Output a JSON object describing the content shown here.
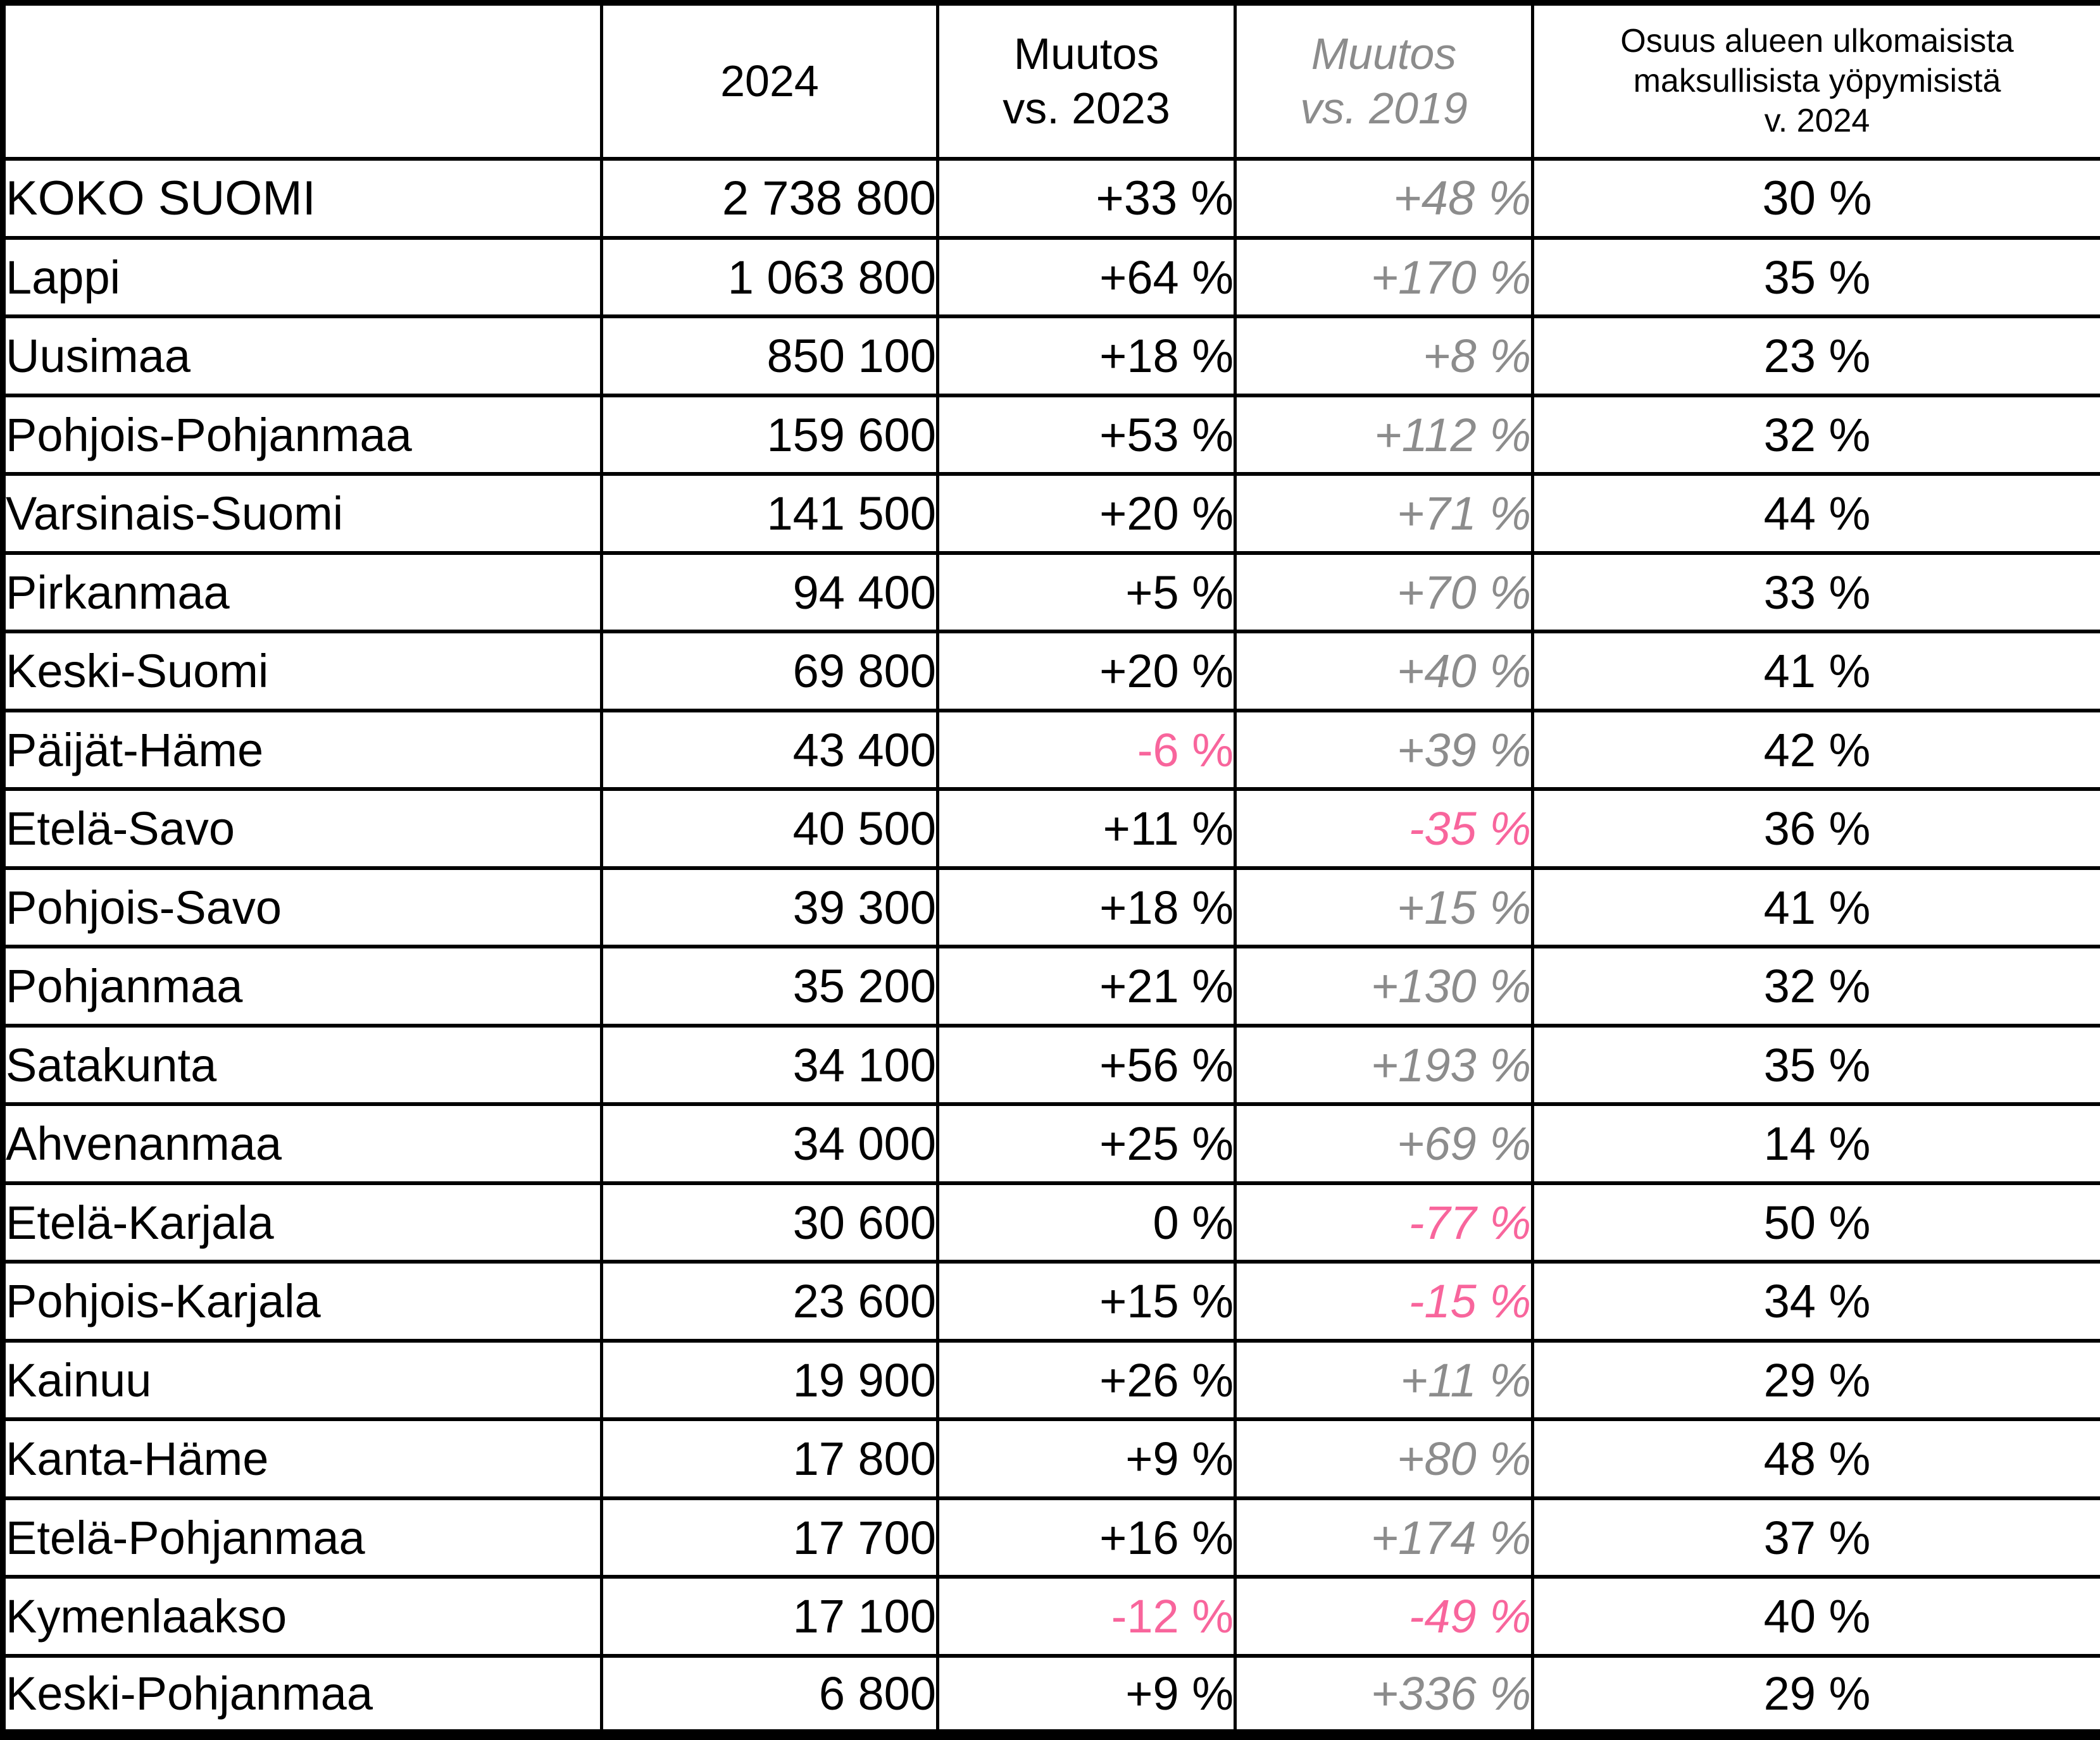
{
  "colors": {
    "text_black": "#000000",
    "muted_gray": "#8c8c8c",
    "negative_pink": "#f8659c",
    "border_black": "#000000",
    "background": "#ffffff"
  },
  "header": {
    "region_label": "",
    "col_2024": "2024",
    "col_vs2023_line1": "Muutos",
    "col_vs2023_line2": "vs. 2023",
    "col_vs2019_line1": "Muutos",
    "col_vs2019_line2": "vs. 2019",
    "col_share_line1": "Osuus alueen ulkomaisista",
    "col_share_line2": "maksullisista yöpymisistä",
    "col_share_line3": "v. 2024"
  },
  "chart_data": {
    "type": "table",
    "columns": [
      "",
      "2024",
      "Muutos vs. 2023",
      "Muutos vs. 2019",
      "Osuus alueen ulkomaisista maksullisista yöpymisistä v. 2024"
    ],
    "rows": [
      {
        "region": "KOKO SUOMI",
        "y2024": "2 738 800",
        "vs2023": "+33 %",
        "vs2023_negative": false,
        "vs2019": "+48 %",
        "vs2019_negative": false,
        "share": "30 %",
        "emphasis": true
      },
      {
        "region": "Lappi",
        "y2024": "1 063 800",
        "vs2023": "+64 %",
        "vs2023_negative": false,
        "vs2019": "+170 %",
        "vs2019_negative": false,
        "share": "35 %",
        "emphasis": false
      },
      {
        "region": "Uusimaa",
        "y2024": "850 100",
        "vs2023": "+18 %",
        "vs2023_negative": false,
        "vs2019": "+8 %",
        "vs2019_negative": false,
        "share": "23 %",
        "emphasis": false
      },
      {
        "region": "Pohjois-Pohjanmaa",
        "y2024": "159 600",
        "vs2023": "+53 %",
        "vs2023_negative": false,
        "vs2019": "+112 %",
        "vs2019_negative": false,
        "share": "32 %",
        "emphasis": false
      },
      {
        "region": "Varsinais-Suomi",
        "y2024": "141 500",
        "vs2023": "+20 %",
        "vs2023_negative": false,
        "vs2019": "+71 %",
        "vs2019_negative": false,
        "share": "44 %",
        "emphasis": false
      },
      {
        "region": "Pirkanmaa",
        "y2024": "94 400",
        "vs2023": "+5 %",
        "vs2023_negative": false,
        "vs2019": "+70 %",
        "vs2019_negative": false,
        "share": "33 %",
        "emphasis": false
      },
      {
        "region": "Keski-Suomi",
        "y2024": "69 800",
        "vs2023": "+20 %",
        "vs2023_negative": false,
        "vs2019": "+40 %",
        "vs2019_negative": false,
        "share": "41 %",
        "emphasis": false
      },
      {
        "region": "Päijät-Häme",
        "y2024": "43 400",
        "vs2023": "-6 %",
        "vs2023_negative": true,
        "vs2019": "+39 %",
        "vs2019_negative": false,
        "share": "42 %",
        "emphasis": false
      },
      {
        "region": "Etelä-Savo",
        "y2024": "40 500",
        "vs2023": "+11 %",
        "vs2023_negative": false,
        "vs2019": "-35 %",
        "vs2019_negative": true,
        "share": "36 %",
        "emphasis": false
      },
      {
        "region": "Pohjois-Savo",
        "y2024": "39 300",
        "vs2023": "+18 %",
        "vs2023_negative": false,
        "vs2019": "+15 %",
        "vs2019_negative": false,
        "share": "41 %",
        "emphasis": false
      },
      {
        "region": "Pohjanmaa",
        "y2024": "35 200",
        "vs2023": "+21 %",
        "vs2023_negative": false,
        "vs2019": "+130 %",
        "vs2019_negative": false,
        "share": "32 %",
        "emphasis": false
      },
      {
        "region": "Satakunta",
        "y2024": "34 100",
        "vs2023": "+56 %",
        "vs2023_negative": false,
        "vs2019": "+193 %",
        "vs2019_negative": false,
        "share": "35 %",
        "emphasis": false
      },
      {
        "region": "Ahvenanmaa",
        "y2024": "34 000",
        "vs2023": "+25 %",
        "vs2023_negative": false,
        "vs2019": "+69 %",
        "vs2019_negative": false,
        "share": "14 %",
        "emphasis": false
      },
      {
        "region": "Etelä-Karjala",
        "y2024": "30 600",
        "vs2023": "0 %",
        "vs2023_negative": false,
        "vs2019": "-77 %",
        "vs2019_negative": true,
        "share": "50 %",
        "emphasis": false
      },
      {
        "region": "Pohjois-Karjala",
        "y2024": "23 600",
        "vs2023": "+15 %",
        "vs2023_negative": false,
        "vs2019": "-15 %",
        "vs2019_negative": true,
        "share": "34 %",
        "emphasis": false
      },
      {
        "region": "Kainuu",
        "y2024": "19 900",
        "vs2023": "+26 %",
        "vs2023_negative": false,
        "vs2019": "+11 %",
        "vs2019_negative": false,
        "share": "29 %",
        "emphasis": false
      },
      {
        "region": "Kanta-Häme",
        "y2024": "17 800",
        "vs2023": "+9 %",
        "vs2023_negative": false,
        "vs2019": "+80 %",
        "vs2019_negative": false,
        "share": "48 %",
        "emphasis": false
      },
      {
        "region": "Etelä-Pohjanmaa",
        "y2024": "17 700",
        "vs2023": "+16 %",
        "vs2023_negative": false,
        "vs2019": "+174 %",
        "vs2019_negative": false,
        "share": "37 %",
        "emphasis": false
      },
      {
        "region": "Kymenlaakso",
        "y2024": "17 100",
        "vs2023": "-12 %",
        "vs2023_negative": true,
        "vs2019": "-49 %",
        "vs2019_negative": true,
        "share": "40 %",
        "emphasis": false
      },
      {
        "region": "Keski-Pohjanmaa",
        "y2024": "6 800",
        "vs2023": "+9 %",
        "vs2023_negative": false,
        "vs2019": "+336 %",
        "vs2019_negative": false,
        "share": "29 %",
        "emphasis": false
      }
    ]
  }
}
